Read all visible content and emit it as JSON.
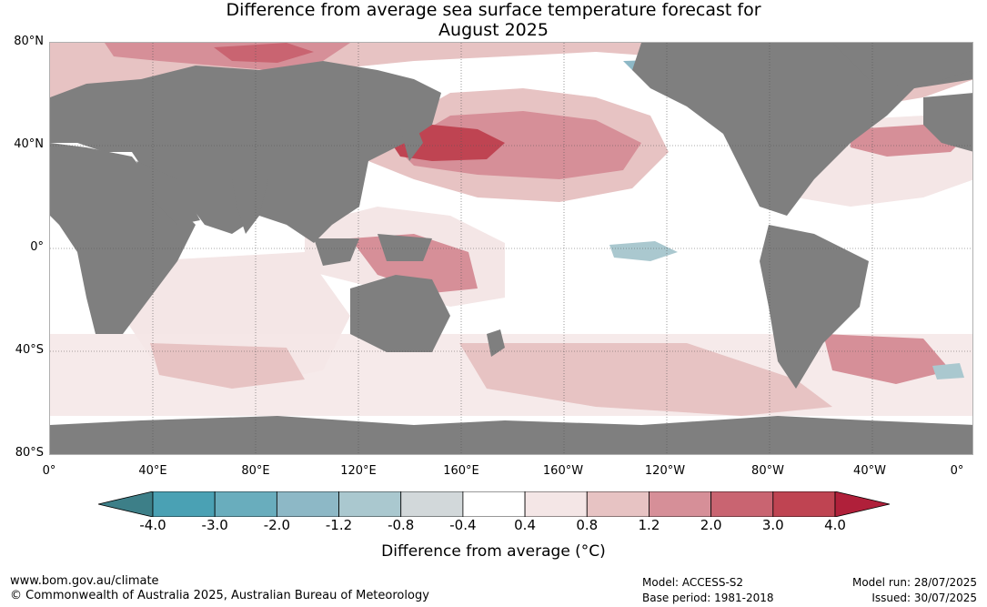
{
  "title": {
    "line1": "Difference from average sea surface temperature forecast for",
    "line2": "August 2025"
  },
  "map": {
    "lat_labels": [
      "80°N",
      "40°N",
      "0°",
      "40°S",
      "80°S"
    ],
    "lon_labels": [
      "0°",
      "40°E",
      "80°E",
      "120°E",
      "160°E",
      "160°W",
      "120°W",
      "80°W",
      "40°W",
      "0°"
    ],
    "land_color": "#7f7f7f",
    "ocean_neutral_color": "#ffffff"
  },
  "colorbar": {
    "ticks": [
      "-4.0",
      "-3.0",
      "-2.0",
      "-1.2",
      "-0.8",
      "-0.4",
      "0.4",
      "0.8",
      "1.2",
      "2.0",
      "3.0",
      "4.0"
    ],
    "colors": [
      "#3d7f88",
      "#4aa1b4",
      "#69adbd",
      "#8db8c6",
      "#aac8cf",
      "#d2d8da",
      "#ffffff",
      "#f4e6e6",
      "#e7c3c3",
      "#d68f98",
      "#c96471",
      "#bf4452",
      "#b0203a"
    ],
    "label": "Difference from average (°C)"
  },
  "footer": {
    "url": "www.bom.gov.au/climate",
    "copyright": "© Commonwealth of Australia 2025, Australian Bureau of Meteorology",
    "model": "Model: ACCESS-S2",
    "base_period": "Base period: 1981-2018",
    "model_run": "Model run: 28/07/2025",
    "issued": "Issued: 30/07/2025"
  }
}
